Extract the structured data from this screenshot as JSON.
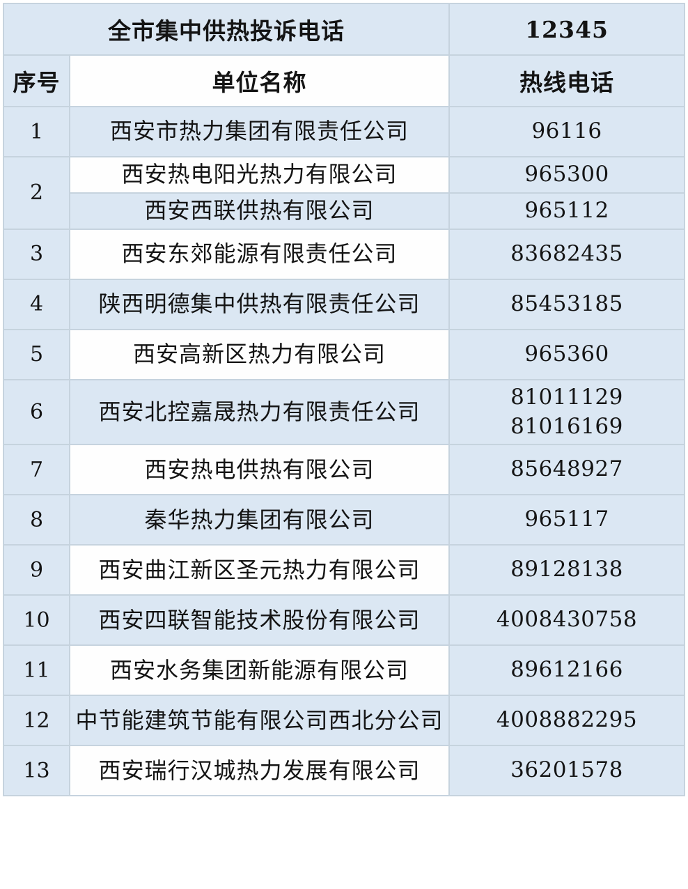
{
  "table": {
    "top_header": {
      "title": "全市集中供热投诉电话",
      "phone": "12345"
    },
    "columns": {
      "index": "序号",
      "name": "单位名称",
      "phone": "热线电话"
    },
    "rows": [
      {
        "index": "1",
        "subs": [
          {
            "name": "西安市热力集团有限责任公司",
            "phones": [
              "96116"
            ]
          }
        ]
      },
      {
        "index": "2",
        "subs": [
          {
            "name": "西安热电阳光热力有限公司",
            "phones": [
              "965300"
            ]
          },
          {
            "name": "西安西联供热有限公司",
            "phones": [
              "965112"
            ]
          }
        ]
      },
      {
        "index": "3",
        "subs": [
          {
            "name": "西安东郊能源有限责任公司",
            "phones": [
              "83682435"
            ]
          }
        ]
      },
      {
        "index": "4",
        "subs": [
          {
            "name": "陕西明德集中供热有限责任公司",
            "phones": [
              "85453185"
            ]
          }
        ]
      },
      {
        "index": "5",
        "subs": [
          {
            "name": "西安高新区热力有限公司",
            "phones": [
              "965360"
            ]
          }
        ]
      },
      {
        "index": "6",
        "subs": [
          {
            "name": "西安北控嘉晟热力有限责任公司",
            "phones": [
              "81011129",
              "81016169"
            ]
          }
        ]
      },
      {
        "index": "7",
        "subs": [
          {
            "name": "西安热电供热有限公司",
            "phones": [
              "85648927"
            ]
          }
        ]
      },
      {
        "index": "8",
        "subs": [
          {
            "name": "秦华热力集团有限公司",
            "phones": [
              "965117"
            ]
          }
        ]
      },
      {
        "index": "9",
        "subs": [
          {
            "name": "西安曲江新区圣元热力有限公司",
            "phones": [
              "89128138"
            ]
          }
        ]
      },
      {
        "index": "10",
        "subs": [
          {
            "name": "西安四联智能技术股份有限公司",
            "phones": [
              "4008430758"
            ]
          }
        ]
      },
      {
        "index": "11",
        "subs": [
          {
            "name": "西安水务集团新能源有限公司",
            "phones": [
              "89612166"
            ]
          }
        ]
      },
      {
        "index": "12",
        "subs": [
          {
            "name": "中节能建筑节能有限公司西北分公司",
            "phones": [
              "4008882295"
            ]
          }
        ]
      },
      {
        "index": "13",
        "subs": [
          {
            "name": "西安瑞行汉城热力发展有限公司",
            "phones": [
              "36201578"
            ]
          }
        ]
      }
    ]
  },
  "colors": {
    "cell_blue": "#dbe7f3",
    "cell_white": "#fefefe",
    "border": "#c6d3de",
    "text": "#141414"
  }
}
